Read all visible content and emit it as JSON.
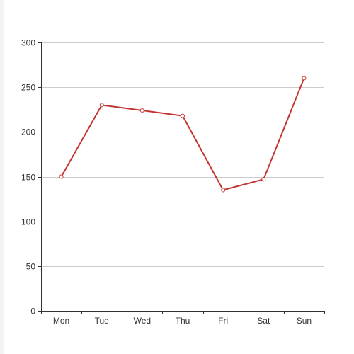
{
  "chart_data": {
    "type": "line",
    "categories": [
      "Mon",
      "Tue",
      "Wed",
      "Thu",
      "Fri",
      "Sat",
      "Sun"
    ],
    "series": [
      {
        "values": [
          150,
          230,
          224,
          218,
          135,
          147,
          260
        ],
        "color": "#c23531"
      }
    ],
    "title": "",
    "xlabel": "",
    "ylabel": "",
    "ylim": [
      0,
      300
    ],
    "yticks": [
      0,
      50,
      100,
      150,
      200,
      250,
      300
    ],
    "grid": true,
    "legend": "none",
    "colors": {
      "line": "#c23531",
      "grid": "#cccccc",
      "axis": "#333333",
      "marker_fill": "#ffffff",
      "side_strip": "#f3f3f8"
    }
  }
}
